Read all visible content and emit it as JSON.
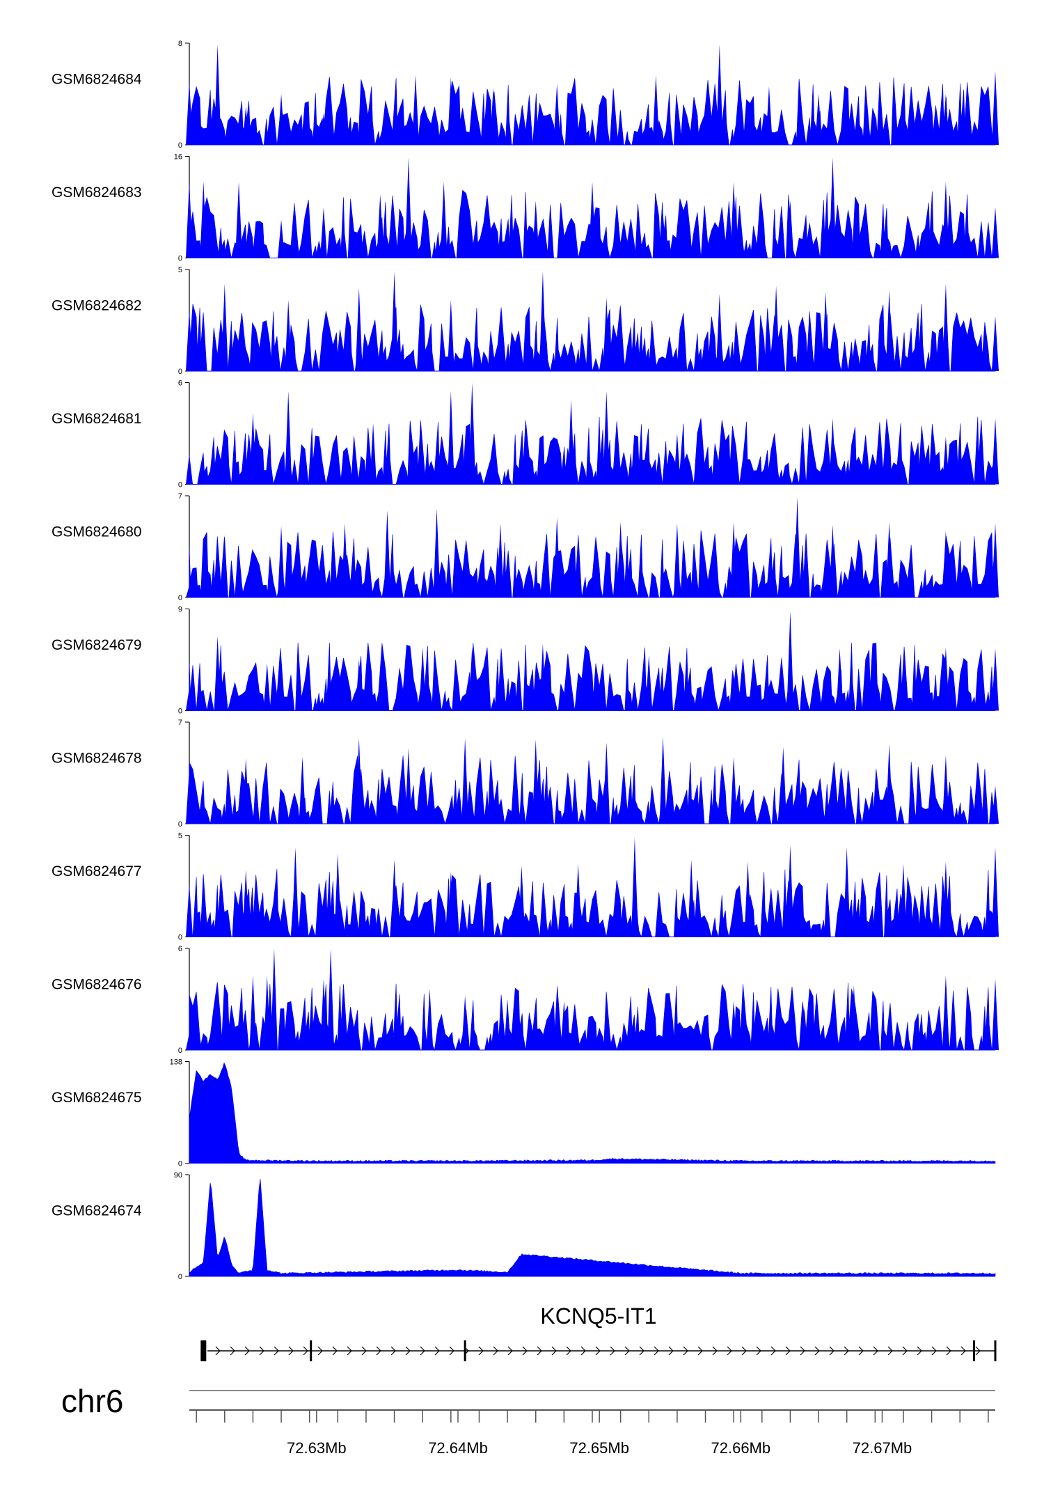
{
  "chart_data": {
    "type": "area",
    "title": "",
    "xlabel": "",
    "ylabel": "",
    "x_ticks": [
      "72.63Mb",
      "72.64Mb",
      "72.65Mb",
      "72.66Mb",
      "72.67Mb"
    ],
    "x_tick_values": [
      72.63,
      72.64,
      72.65,
      72.66,
      72.67
    ],
    "xlim": [
      72.621,
      72.678
    ],
    "chromosome": "chr6",
    "gene": {
      "name": "KCNQ5-IT1",
      "start": 72.622,
      "end": 72.678,
      "strand": "+",
      "exon_marks": [
        72.622,
        72.6296,
        72.6405,
        72.6765,
        72.678
      ]
    },
    "color": "#0000ff",
    "series": [
      {
        "name": "GSM6824684",
        "ymax": 8,
        "ylim": [
          0,
          8
        ],
        "x": [
          72.621,
          72.623,
          72.625,
          72.6275,
          72.6305,
          72.637,
          72.6395,
          72.6425,
          72.647,
          72.654,
          72.6585,
          72.662,
          72.6655,
          72.6745,
          72.678
        ],
        "values": [
          5,
          7.9,
          3,
          4,
          2.5,
          5.5,
          5.3,
          4.5,
          4.8,
          5.5,
          7.9,
          4.6,
          4,
          4,
          5.8
        ]
      },
      {
        "name": "GSM6824683",
        "ymax": 16,
        "ylim": [
          0,
          16
        ],
        "x": [
          72.621,
          72.622,
          72.6245,
          72.6275,
          72.6305,
          72.6345,
          72.6365,
          72.639,
          72.6455,
          72.6495,
          72.6545,
          72.6595,
          72.6635,
          72.6665,
          72.6745,
          72.678
        ],
        "values": [
          12,
          12,
          12,
          6,
          8,
          10,
          15.8,
          12,
          9,
          12,
          7,
          12,
          9,
          15.8,
          12,
          8
        ]
      },
      {
        "name": "GSM6824682",
        "ymax": 5,
        "ylim": [
          0,
          5
        ],
        "x": [
          72.621,
          72.6235,
          72.628,
          72.633,
          72.6355,
          72.6395,
          72.646,
          72.6505,
          72.6585,
          72.6625,
          72.666,
          72.6705,
          72.6745,
          72.678
        ],
        "values": [
          3,
          4.3,
          3.5,
          4.1,
          4.9,
          3.5,
          4.9,
          3.6,
          3.8,
          4.2,
          3.9,
          4,
          4.3,
          2.7
        ]
      },
      {
        "name": "GSM6824681",
        "ymax": 6,
        "ylim": [
          0,
          6
        ],
        "x": [
          72.621,
          72.6255,
          72.628,
          72.634,
          72.6395,
          72.641,
          72.648,
          72.6505,
          72.6555,
          72.6665,
          72.6745,
          72.678
        ],
        "values": [
          1.8,
          4.2,
          5.5,
          3.6,
          5.5,
          6,
          5,
          5.5,
          3,
          3.9,
          2.8,
          3.9
        ]
      },
      {
        "name": "GSM6824680",
        "ymax": 7,
        "ylim": [
          0,
          7
        ],
        "x": [
          72.621,
          72.6235,
          72.6275,
          72.632,
          72.635,
          72.6385,
          72.643,
          72.647,
          72.6515,
          72.6555,
          72.6595,
          72.664,
          72.6665,
          72.6705,
          72.6745,
          72.678
        ],
        "values": [
          0.8,
          4.3,
          4.9,
          5.1,
          6,
          6.1,
          5.1,
          5.5,
          5.2,
          5.1,
          5.2,
          6.9,
          5,
          5.2,
          4.6,
          5.1
        ]
      },
      {
        "name": "GSM6824679",
        "ymax": 9,
        "ylim": [
          0,
          9
        ],
        "x": [
          72.621,
          72.623,
          72.6265,
          72.633,
          72.6375,
          72.641,
          72.646,
          72.6535,
          72.6595,
          72.6635,
          72.667,
          72.6745,
          72.678
        ],
        "values": [
          2,
          6.6,
          4.2,
          4.5,
          5.6,
          5.6,
          5.9,
          4.9,
          3.6,
          8.8,
          5.5,
          5.6,
          5.5
        ]
      },
      {
        "name": "GSM6824678",
        "ymax": 7,
        "ylim": [
          0,
          7
        ],
        "x": [
          72.621,
          72.625,
          72.629,
          72.633,
          72.6365,
          72.6405,
          72.6455,
          72.6505,
          72.6545,
          72.6595,
          72.663,
          72.6705,
          72.6745,
          72.678
        ],
        "values": [
          3.8,
          4.5,
          4.6,
          5.9,
          5.2,
          5.9,
          5.8,
          5.6,
          6,
          4.6,
          5.3,
          5.5,
          4.7,
          2.6
        ]
      },
      {
        "name": "GSM6824677",
        "ymax": 5,
        "ylim": [
          0,
          5
        ],
        "x": [
          72.621,
          72.625,
          72.6285,
          72.6315,
          72.6355,
          72.6395,
          72.6445,
          72.6485,
          72.6525,
          72.6565,
          72.6605,
          72.6635,
          72.6675,
          72.6715,
          72.6745,
          72.678
        ],
        "values": [
          2.6,
          3.3,
          4.4,
          4.1,
          3.8,
          3.2,
          3.5,
          3.6,
          4.9,
          3.8,
          3.7,
          4.5,
          4.4,
          3.6,
          3.7,
          4.4
        ]
      },
      {
        "name": "GSM6824676",
        "ymax": 6,
        "ylim": [
          0,
          6
        ],
        "x": [
          72.621,
          72.6255,
          72.6265,
          72.627,
          72.6305,
          72.631,
          72.638,
          72.6405,
          72.6435,
          72.6475,
          72.6535,
          72.6595,
          72.6645,
          72.668,
          72.6745,
          72.678
        ],
        "values": [
          1,
          4.4,
          4.4,
          6,
          4.2,
          6,
          3.6,
          3.2,
          3,
          2.9,
          3.6,
          2.9,
          2.5,
          3.8,
          4.4,
          4.2
        ]
      },
      {
        "name": "GSM6824675",
        "ymax": 138,
        "ylim": [
          0,
          138
        ],
        "x": [
          72.621,
          72.6215,
          72.622,
          72.6225,
          72.623,
          72.6235,
          72.624,
          72.6245,
          72.625,
          72.63,
          72.6405,
          72.6495,
          72.651,
          72.66,
          72.678
        ],
        "values": [
          60,
          126,
          110,
          120,
          112,
          136,
          100,
          12,
          3,
          2,
          2,
          3,
          5,
          2,
          2
        ]
      },
      {
        "name": "GSM6824674",
        "ymax": 90,
        "ylim": [
          0,
          90
        ],
        "x": [
          72.621,
          72.622,
          72.6225,
          72.623,
          72.6235,
          72.624,
          72.6245,
          72.6255,
          72.626,
          72.6265,
          72.6275,
          72.64,
          72.6435,
          72.6445,
          72.66,
          72.678
        ],
        "values": [
          3,
          12,
          86,
          15,
          35,
          10,
          2,
          5,
          89,
          5,
          2,
          5,
          3,
          19,
          2,
          2
        ]
      }
    ]
  }
}
